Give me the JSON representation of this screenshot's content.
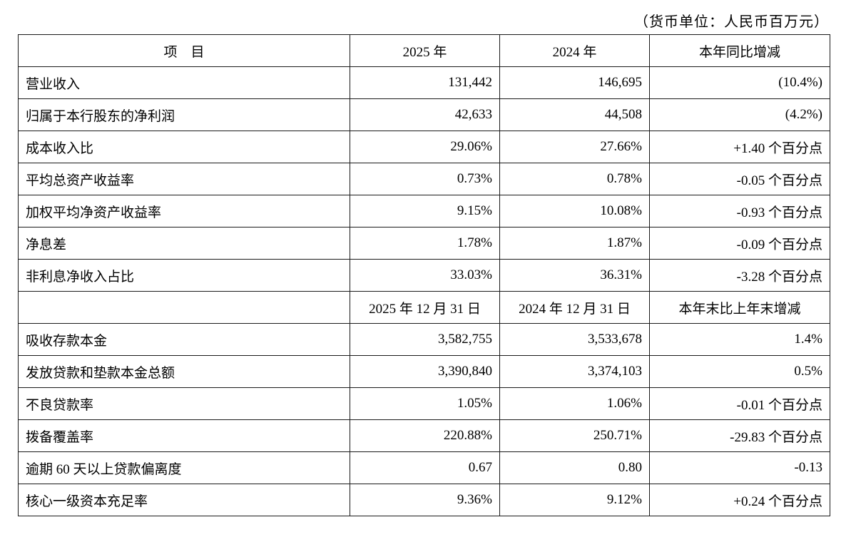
{
  "unit_note": "（货币单位：人民币百万元）",
  "table": {
    "columns": [
      "项　目",
      "2025 年",
      "2024 年",
      "本年同比增减"
    ],
    "rows": [
      {
        "type": "data",
        "label": "营业收入",
        "y2025": "131,442",
        "y2024": "146,695",
        "change": "(10.4%)"
      },
      {
        "type": "data",
        "label": "归属于本行股东的净利润",
        "y2025": "42,633",
        "y2024": "44,508",
        "change": "(4.2%)"
      },
      {
        "type": "data",
        "label": "成本收入比",
        "y2025": "29.06%",
        "y2024": "27.66%",
        "change": "+1.40 个百分点"
      },
      {
        "type": "data",
        "label": "平均总资产收益率",
        "y2025": "0.73%",
        "y2024": "0.78%",
        "change": "-0.05 个百分点"
      },
      {
        "type": "data",
        "label": "加权平均净资产收益率",
        "y2025": "9.15%",
        "y2024": "10.08%",
        "change": "-0.93 个百分点"
      },
      {
        "type": "data",
        "label": "净息差",
        "y2025": "1.78%",
        "y2024": "1.87%",
        "change": "-0.09 个百分点"
      },
      {
        "type": "data",
        "label": "非利息净收入占比",
        "y2025": "33.03%",
        "y2024": "36.31%",
        "change": "-3.28 个百分点"
      },
      {
        "type": "section",
        "label": "",
        "y2025": "2025 年 12 月 31 日",
        "y2024": "2024 年 12 月 31 日",
        "change": "本年末比上年末增减"
      },
      {
        "type": "data",
        "label": "吸收存款本金",
        "y2025": "3,582,755",
        "y2024": "3,533,678",
        "change": "1.4%"
      },
      {
        "type": "data",
        "label": "发放贷款和垫款本金总额",
        "y2025": "3,390,840",
        "y2024": "3,374,103",
        "change": "0.5%"
      },
      {
        "type": "data",
        "label": "不良贷款率",
        "y2025": "1.05%",
        "y2024": "1.06%",
        "change": "-0.01 个百分点"
      },
      {
        "type": "data",
        "label": "拨备覆盖率",
        "y2025": "220.88%",
        "y2024": "250.71%",
        "change": "-29.83 个百分点"
      },
      {
        "type": "data",
        "label": "逾期 60 天以上贷款偏离度",
        "y2025": "0.67",
        "y2024": "0.80",
        "change": "-0.13"
      },
      {
        "type": "data",
        "label": "核心一级资本充足率",
        "y2025": "9.36%",
        "y2024": "9.12%",
        "change": "+0.24 个百分点"
      }
    ]
  }
}
